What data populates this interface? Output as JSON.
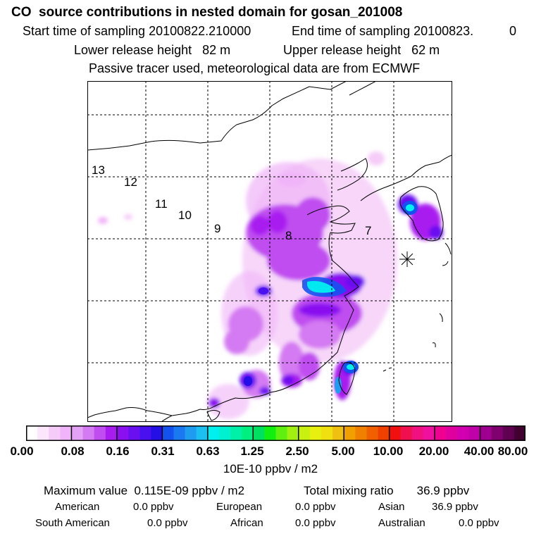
{
  "header": {
    "title": "CO  source contributions in nested domain for gosan_201008",
    "start_label": "Start time of sampling 20100822.210000",
    "end_label": "End time of sampling 20100823.",
    "end_value": "0",
    "lower_release": "Lower release height   82 m",
    "upper_release": "Upper release height   62 m",
    "tracer_note": "Passive tracer used, meteorological data are from ECMWF"
  },
  "map": {
    "time_markers": [
      "13",
      "12",
      "11",
      "10",
      "9",
      "8",
      "7"
    ],
    "receptor_marker": "asterisk-receptor"
  },
  "colorbar": {
    "tick_labels": [
      "0.00",
      "0.08",
      "0.16",
      "0.31",
      "0.63",
      "1.25",
      "2.50",
      "5.00",
      "10.00",
      "20.00",
      "40.00",
      "80.00"
    ],
    "unit_label": "10E-10 ppbv / m2",
    "colors": [
      "#ffffff",
      "#fbe6fb",
      "#f5ccf8",
      "#f0b4f8",
      "#e3a2f5",
      "#d47af2",
      "#c04df0",
      "#a91cf0",
      "#8a10f0",
      "#6a10f0",
      "#4a10f0",
      "#2410e6",
      "#1452f0",
      "#1a78f0",
      "#1e9cf0",
      "#1cc0f0",
      "#00f0f0",
      "#00f0d0",
      "#00f0a8",
      "#00f080",
      "#00e060",
      "#10f010",
      "#60f010",
      "#a0f010",
      "#c8f010",
      "#e8f010",
      "#f0e010",
      "#f0c010",
      "#f0a000",
      "#f08000",
      "#f06000",
      "#f04000",
      "#f01010",
      "#f01050",
      "#f01080",
      "#f010a0",
      "#f00090",
      "#e000a0",
      "#d000b0",
      "#c000a8",
      "#a00090",
      "#800070",
      "#600050",
      "#400030"
    ]
  },
  "stats": {
    "max_label": "Maximum value  0.115E-09 ppbv / m2",
    "total_label": "Total mixing ratio       36.9 ppbv",
    "american": "American",
    "american_val": "0.0 ppbv",
    "european": "European",
    "european_val": "0.0 ppbv",
    "asian": "Asian",
    "asian_val": "36.9 ppbv",
    "south_american": "South American",
    "south_american_val": "0.0 ppbv",
    "african": "African",
    "african_val": "0.0 ppbv",
    "australian": "Australian",
    "australian_val": "0.0 ppbv"
  }
}
